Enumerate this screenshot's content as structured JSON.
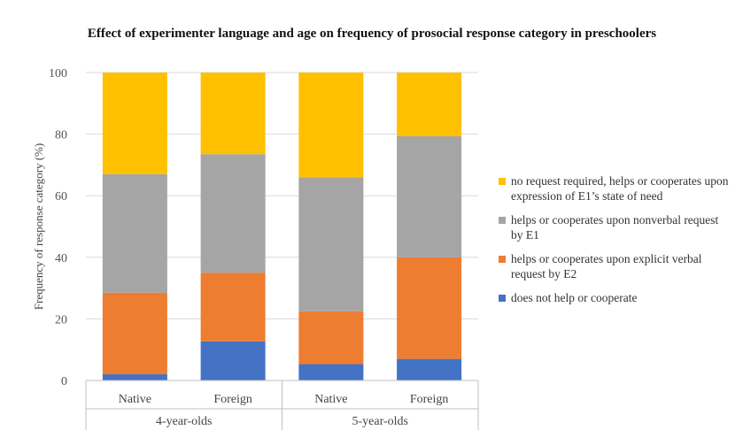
{
  "chart_data": {
    "type": "bar",
    "stacked": true,
    "title": "Effect of experimenter language and age on frequency of prosocial response category in preschoolers",
    "ylabel": "Frequency of response category (%)",
    "xlabel": "",
    "ylim": [
      0,
      100
    ],
    "yticks": [
      0,
      20,
      40,
      60,
      80,
      100
    ],
    "grid": true,
    "legend_position": "right",
    "categories": [
      "Native",
      "Foreign",
      "Native",
      "Foreign"
    ],
    "groups": [
      {
        "label": "4-year-olds",
        "categories": [
          "Native",
          "Foreign"
        ]
      },
      {
        "label": "5-year-olds",
        "categories": [
          "Native",
          "Foreign"
        ]
      }
    ],
    "series": [
      {
        "name": "does not help or cooperate",
        "color": "#4472C4",
        "values": [
          2,
          12.7,
          5.3,
          7
        ]
      },
      {
        "name": "helps or cooperates upon explicit verbal request by E2",
        "color": "#ED7D31",
        "values": [
          26.5,
          22.3,
          17.2,
          33
        ]
      },
      {
        "name": "helps or cooperates upon nonverbal request by E1",
        "color": "#A5A5A5",
        "values": [
          38.5,
          38.5,
          43.5,
          39.3
        ]
      },
      {
        "name": "no request required, helps or cooperates upon expression of E1’s state of need",
        "color": "#FFC000",
        "values": [
          33,
          26.5,
          34,
          20.7
        ]
      }
    ]
  }
}
